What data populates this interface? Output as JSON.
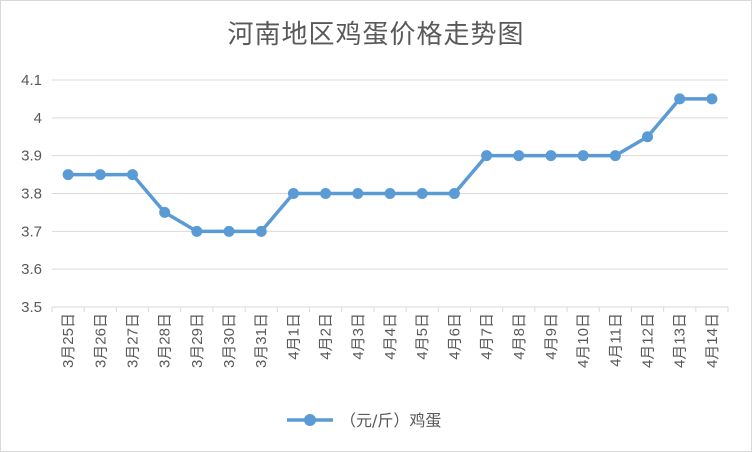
{
  "chart_data": {
    "type": "line",
    "title": "河南地区鸡蛋价格走势图",
    "xlabel": "",
    "ylabel": "",
    "ylim": [
      3.5,
      4.1
    ],
    "yticks": [
      "3.5",
      "3.6",
      "3.7",
      "3.8",
      "3.9",
      "4",
      "4.1"
    ],
    "categories": [
      "3月25日",
      "3月26日",
      "3月27日",
      "3月28日",
      "3月29日",
      "3月30日",
      "3月31日",
      "4月1日",
      "4月2日",
      "4月3日",
      "4月4日",
      "4月5日",
      "4月6日",
      "4月7日",
      "4月8日",
      "4月9日",
      "4月10日",
      "4月11日",
      "4月12日",
      "4月13日",
      "4月14日"
    ],
    "series": [
      {
        "name": "（元/斤）鸡蛋",
        "color": "#5b9bd5",
        "values": [
          3.85,
          3.85,
          3.85,
          3.75,
          3.7,
          3.7,
          3.7,
          3.8,
          3.8,
          3.8,
          3.8,
          3.8,
          3.8,
          3.9,
          3.9,
          3.9,
          3.9,
          3.9,
          3.95,
          4.05,
          4.05
        ]
      }
    ],
    "grid": true,
    "legend": "bottom"
  }
}
